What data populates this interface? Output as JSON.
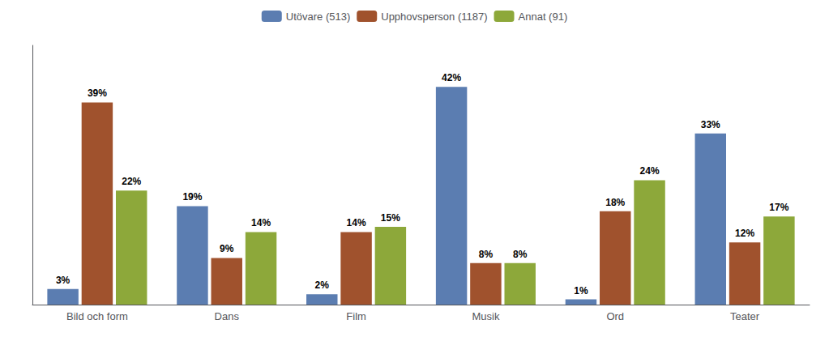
{
  "chart_data": {
    "type": "bar",
    "categories": [
      "Bild och form",
      "Dans",
      "Film",
      "Musik",
      "Ord",
      "Teater"
    ],
    "series": [
      {
        "name": "Utövare (513)",
        "color": "#5b7db1",
        "values": [
          3,
          19,
          2,
          42,
          1,
          33
        ],
        "value_labels": [
          "3%",
          "19%",
          "2%",
          "42%",
          "1%",
          "33%"
        ]
      },
      {
        "name": "Upphovsperson (1187)",
        "color": "#a0522d",
        "values": [
          39,
          9,
          14,
          8,
          18,
          12
        ],
        "value_labels": [
          "39%",
          "9%",
          "14%",
          "8%",
          "18%",
          "12%"
        ]
      },
      {
        "name": "Annat (91)",
        "color": "#8da83a",
        "values": [
          22,
          14,
          15,
          8,
          24,
          17
        ],
        "value_labels": [
          "22%",
          "14%",
          "15%",
          "8%",
          "24%",
          "17%"
        ]
      }
    ],
    "ylim": [
      0,
      50
    ],
    "grid": false,
    "legend": "top",
    "data_labels": true,
    "tick_labels": "x"
  }
}
